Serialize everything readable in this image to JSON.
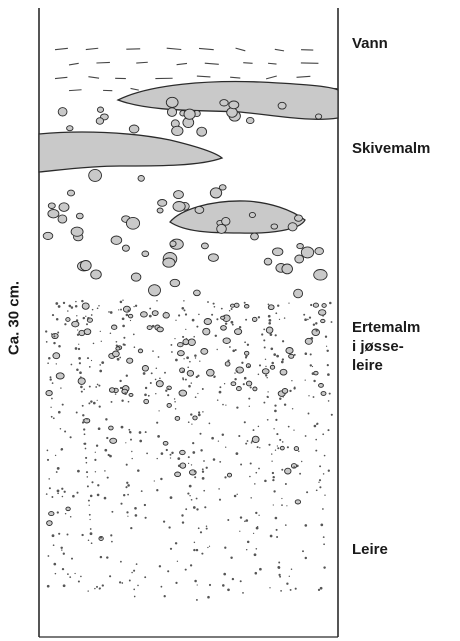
{
  "diagram": {
    "scale_label": "Ca. 30 cm.",
    "layers": [
      {
        "id": "vann",
        "label": "Vann"
      },
      {
        "id": "skivemalm",
        "label": "Skivemalm"
      },
      {
        "id": "ertemalm",
        "label": "Ertemalm\ni jøsse-\nleire"
      },
      {
        "id": "leire",
        "label": "Leire"
      }
    ],
    "colors": {
      "outline": "#2b2b2b",
      "ore_fill": "#c9c9c9",
      "speck": "#555555",
      "dash": "#444444"
    }
  }
}
